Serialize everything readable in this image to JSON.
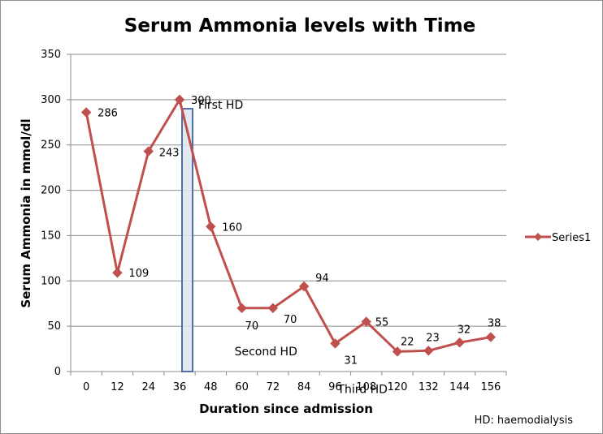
{
  "chart_data": {
    "type": "line",
    "title": "Serum Ammonia levels with Time",
    "xlabel": "Duration since admission",
    "ylabel": "Serum Ammonia in mmol/dl",
    "ylim": [
      0,
      350
    ],
    "yticks": [
      0,
      50,
      100,
      150,
      200,
      250,
      300,
      350
    ],
    "grid": true,
    "legend_position": "right",
    "categories": [
      "0",
      "12",
      "24",
      "36",
      "48",
      "60",
      "72",
      "84",
      "96",
      "108",
      "120",
      "132",
      "144",
      "156"
    ],
    "series": [
      {
        "name": "Series1",
        "color": "#c0504d",
        "values": [
          286,
          109,
          243,
          300,
          160,
          70,
          70,
          94,
          31,
          55,
          22,
          23,
          32,
          38
        ],
        "data_labels": [
          "286",
          "109",
          "243",
          "300",
          "160",
          "70",
          "70",
          "94",
          "31",
          "55",
          "22",
          "23",
          "32",
          "38"
        ]
      }
    ],
    "annotations": [
      {
        "text": "First HD",
        "at_category": "36"
      },
      {
        "text": "Second HD",
        "at_category": "60"
      },
      {
        "text": "Third HD",
        "at_category": "96"
      }
    ],
    "highlight_box": {
      "category": "36",
      "from_value": 0,
      "to_value": 290,
      "color": "#4f6fa8"
    },
    "footnote": "HD: haemodialysis"
  }
}
